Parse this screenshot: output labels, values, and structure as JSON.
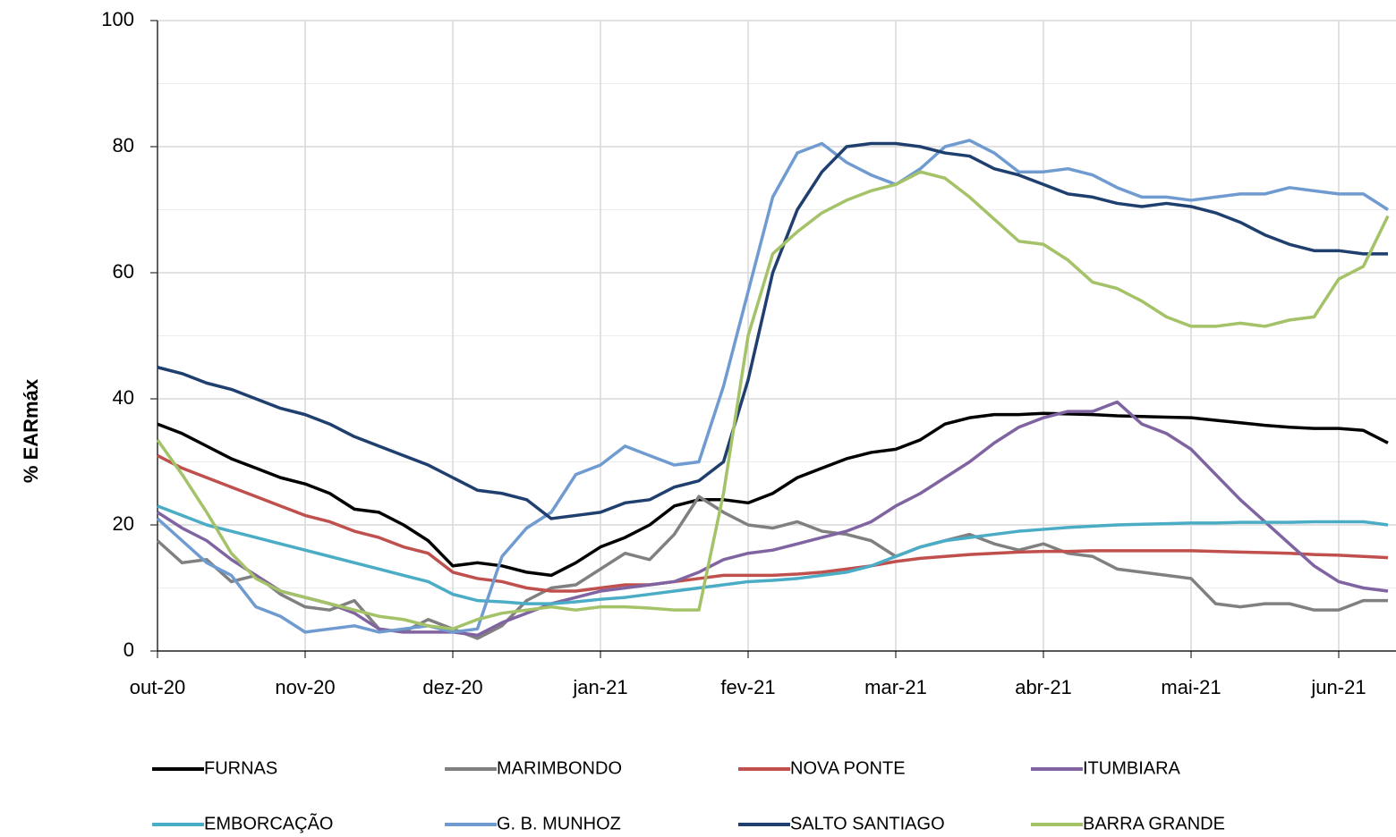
{
  "chart_data": {
    "type": "line",
    "ylabel": "% EARmáx",
    "categories": [
      "out-20",
      null,
      null,
      null,
      null,
      null,
      "nov-20",
      null,
      null,
      null,
      null,
      null,
      "dez-20",
      null,
      null,
      null,
      null,
      null,
      "jan-21",
      null,
      null,
      null,
      null,
      null,
      "fev-21",
      null,
      null,
      null,
      null,
      null,
      "mar-21",
      null,
      null,
      null,
      null,
      null,
      "abr-21",
      null,
      null,
      null,
      null,
      null,
      "mai-21",
      null,
      null,
      null,
      null,
      null,
      "jun-21",
      null,
      null
    ],
    "ylim": [
      0,
      100
    ],
    "yticks": [
      0,
      20,
      40,
      60,
      80,
      100
    ],
    "yminor": [
      10,
      30,
      50,
      70,
      90
    ],
    "grid": true,
    "legend": "bottom",
    "series": [
      {
        "name": "FURNAS",
        "color": "#000000",
        "values": [
          36,
          34.5,
          32.5,
          30.5,
          29,
          27.5,
          26.5,
          25,
          22.5,
          22,
          20,
          17.5,
          13.5,
          14,
          13.5,
          12.5,
          12,
          14,
          16.5,
          18,
          20,
          23,
          24,
          24,
          23.5,
          25,
          27.5,
          29,
          30.5,
          31.5,
          32,
          33.5,
          36,
          37,
          37.5,
          37.5,
          37.7,
          37.6,
          37.5,
          37.3,
          37.2,
          37.1,
          37,
          36.6,
          36.2,
          35.8,
          35.5,
          35.3,
          35.3,
          35,
          33
        ]
      },
      {
        "name": "MARIMBONDO",
        "color": "#808080",
        "values": [
          17.5,
          14,
          14.5,
          11,
          12,
          9,
          7,
          6.5,
          8,
          3.5,
          3,
          5,
          3.5,
          2,
          4,
          8,
          10,
          10.5,
          13,
          15.5,
          14.5,
          18.5,
          24.5,
          22,
          20,
          19.5,
          20.5,
          19,
          18.5,
          17.5,
          15,
          16.5,
          17.5,
          18.5,
          17,
          16,
          17,
          15.5,
          15,
          13,
          12.5,
          12,
          11.5,
          7.5,
          7,
          7.5,
          7.5,
          6.5,
          6.5,
          8,
          8
        ]
      },
      {
        "name": "NOVA PONTE",
        "color": "#c0504d",
        "values": [
          31,
          29,
          27.5,
          26,
          24.5,
          23,
          21.5,
          20.5,
          19,
          18,
          16.5,
          15.5,
          12.5,
          11.5,
          11,
          10,
          9.5,
          9.5,
          10,
          10.5,
          10.5,
          11,
          11.5,
          12,
          12,
          12,
          12.2,
          12.5,
          13,
          13.5,
          14.2,
          14.7,
          15,
          15.3,
          15.5,
          15.7,
          15.8,
          15.8,
          15.9,
          15.9,
          15.9,
          15.9,
          15.9,
          15.8,
          15.7,
          15.6,
          15.5,
          15.3,
          15.2,
          15,
          14.8
        ]
      },
      {
        "name": "ITUMBIARA",
        "color": "#8064a2",
        "values": [
          22,
          19.5,
          17.5,
          14.5,
          12,
          9.5,
          8.5,
          7.5,
          6,
          3.5,
          3,
          3,
          3,
          2.5,
          4.5,
          6,
          7.5,
          8.5,
          9.5,
          10,
          10.5,
          11,
          12.5,
          14.5,
          15.5,
          16,
          17,
          18,
          19,
          20.5,
          23,
          25,
          27.5,
          30,
          33,
          35.5,
          37,
          38,
          38,
          39.5,
          36,
          34.5,
          32,
          28,
          24,
          20.5,
          17,
          13.5,
          11,
          10,
          9.5
        ]
      },
      {
        "name": "EMBORCAÇÃO",
        "color": "#4bacc6",
        "values": [
          23,
          21.5,
          20,
          19,
          18,
          17,
          16,
          15,
          14,
          13,
          12,
          11,
          9,
          8,
          7.8,
          7.5,
          7.5,
          7.8,
          8.2,
          8.5,
          9,
          9.5,
          10,
          10.5,
          11,
          11.2,
          11.5,
          12,
          12.5,
          13.5,
          15,
          16.5,
          17.5,
          18,
          18.5,
          19,
          19.3,
          19.6,
          19.8,
          20,
          20.1,
          20.2,
          20.3,
          20.3,
          20.4,
          20.4,
          20.4,
          20.5,
          20.5,
          20.5,
          20
        ]
      },
      {
        "name": "G. B. MUNHOZ",
        "color": "#6f9bd1",
        "values": [
          21,
          17.5,
          14,
          12,
          7,
          5.5,
          3,
          3.5,
          4,
          3,
          3.5,
          4,
          3,
          3.5,
          15,
          19.5,
          22,
          28,
          29.5,
          32.5,
          31,
          29.5,
          30,
          42,
          57,
          72,
          79,
          80.5,
          77.5,
          75.5,
          74,
          76.5,
          80,
          81,
          79,
          76,
          76,
          76.5,
          75.5,
          73.5,
          72,
          72,
          71.5,
          72,
          72.5,
          72.5,
          73.5,
          73,
          72.5,
          72.5,
          70
        ]
      },
      {
        "name": "SALTO SANTIAGO",
        "color": "#1f3f6e",
        "values": [
          45,
          44,
          42.5,
          41.5,
          40,
          38.5,
          37.5,
          36,
          34,
          32.5,
          31,
          29.5,
          27.5,
          25.5,
          25,
          24,
          21,
          21.5,
          22,
          23.5,
          24,
          26,
          27,
          30,
          43,
          60,
          70,
          76,
          80,
          80.5,
          80.5,
          80,
          79,
          78.5,
          76.5,
          75.5,
          74,
          72.5,
          72,
          71,
          70.5,
          71,
          70.5,
          69.5,
          68,
          66,
          64.5,
          63.5,
          63.5,
          63,
          63
        ]
      },
      {
        "name": "BARRA GRANDE",
        "color": "#a4c267",
        "values": [
          33.5,
          28,
          22,
          15.5,
          11.5,
          9.5,
          8.5,
          7.5,
          6.5,
          5.5,
          5,
          4,
          3.5,
          5,
          6,
          6.5,
          7,
          6.5,
          7,
          7,
          6.8,
          6.5,
          6.5,
          25,
          50,
          63,
          66.5,
          69.5,
          71.5,
          73,
          74,
          76,
          75,
          72,
          68.5,
          65,
          64.5,
          62,
          58.5,
          57.5,
          55.5,
          53,
          51.5,
          51.5,
          52,
          51.5,
          52.5,
          53,
          59,
          61,
          69
        ]
      }
    ]
  }
}
